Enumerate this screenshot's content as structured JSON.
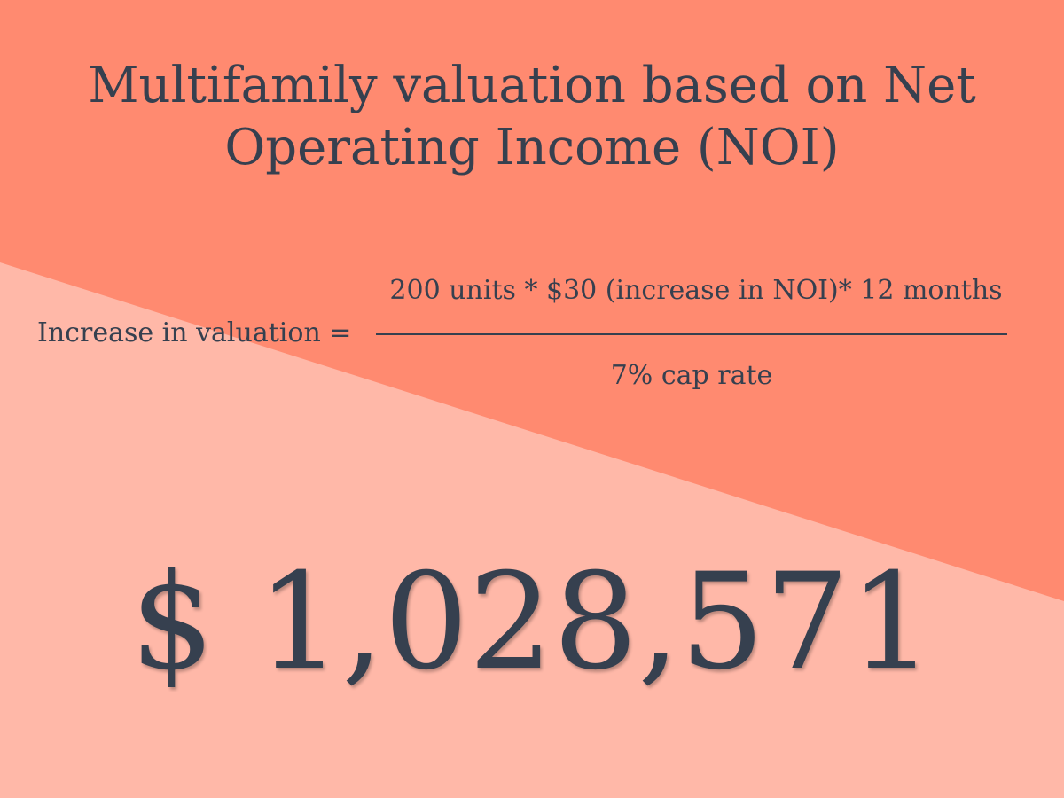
{
  "colors": {
    "background_light": "#FFB8A8",
    "background_dark": "#FF8A70",
    "text": "#36404F"
  },
  "title": {
    "line1": "Multifamily valuation based on Net",
    "line2": "Operating Income (NOI)"
  },
  "formula": {
    "lhs": "Increase in valuation =",
    "numerator": "200 units * $30 (increase in NOI)* 12 months",
    "denominator": "7% cap rate"
  },
  "result": {
    "value": "$ 1,028,571"
  }
}
